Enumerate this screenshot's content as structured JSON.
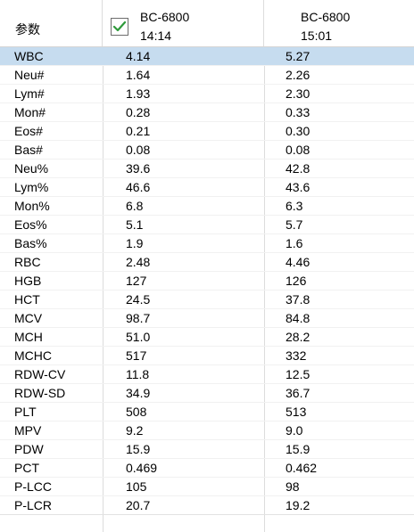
{
  "header": {
    "param_label": "参数",
    "col1": {
      "name": "BC-6800",
      "time": "14:14"
    },
    "col2": {
      "name": "BC-6800",
      "time": "15:01"
    }
  },
  "rows": [
    {
      "name": "WBC",
      "v1": "4.14",
      "v2": "5.27",
      "selected": true
    },
    {
      "name": "Neu#",
      "v1": "1.64",
      "v2": "2.26"
    },
    {
      "name": "Lym#",
      "v1": "1.93",
      "v2": "2.30"
    },
    {
      "name": "Mon#",
      "v1": "0.28",
      "v2": "0.33"
    },
    {
      "name": "Eos#",
      "v1": "0.21",
      "v2": "0.30"
    },
    {
      "name": "Bas#",
      "v1": "0.08",
      "v2": "0.08"
    },
    {
      "name": "Neu%",
      "v1": "39.6",
      "v2": "42.8"
    },
    {
      "name": "Lym%",
      "v1": "46.6",
      "v2": "43.6"
    },
    {
      "name": "Mon%",
      "v1": "6.8",
      "v2": "6.3"
    },
    {
      "name": "Eos%",
      "v1": "5.1",
      "v2": "5.7"
    },
    {
      "name": "Bas%",
      "v1": "1.9",
      "v2": "1.6"
    },
    {
      "name": "RBC",
      "v1": "2.48",
      "v2": "4.46"
    },
    {
      "name": "HGB",
      "v1": "127",
      "v2": "126"
    },
    {
      "name": "HCT",
      "v1": "24.5",
      "v2": "37.8"
    },
    {
      "name": "MCV",
      "v1": "98.7",
      "v2": "84.8"
    },
    {
      "name": "MCH",
      "v1": "51.0",
      "v2": "28.2"
    },
    {
      "name": "MCHC",
      "v1": "517",
      "v2": "332"
    },
    {
      "name": "RDW-CV",
      "v1": "11.8",
      "v2": "12.5"
    },
    {
      "name": "RDW-SD",
      "v1": "34.9",
      "v2": "36.7"
    },
    {
      "name": "PLT",
      "v1": "508",
      "v2": "513"
    },
    {
      "name": "MPV",
      "v1": "9.2",
      "v2": "9.0"
    },
    {
      "name": "PDW",
      "v1": "15.9",
      "v2": "15.9"
    },
    {
      "name": "PCT",
      "v1": "0.469",
      "v2": "0.462"
    },
    {
      "name": "P-LCC",
      "v1": "105",
      "v2": "98"
    },
    {
      "name": "P-LCR",
      "v1": "20.7",
      "v2": "19.2"
    }
  ],
  "colors": {
    "selected_row": "#c6dcef",
    "check": "#2e9a3a"
  }
}
